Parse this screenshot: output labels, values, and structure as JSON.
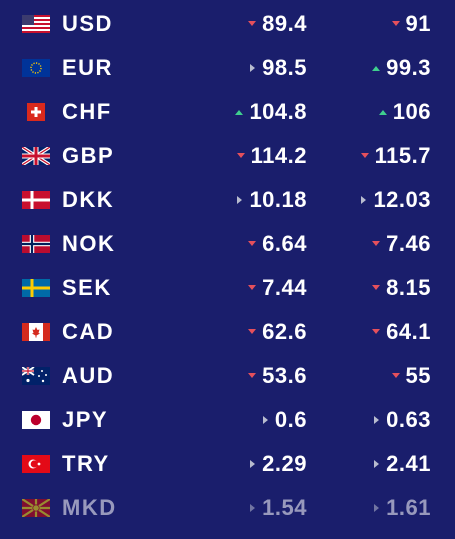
{
  "rows": [
    {
      "code": "USD",
      "buy": 89.4,
      "sell": 91,
      "trend": {
        "buy": "down",
        "sell": "down"
      }
    },
    {
      "code": "EUR",
      "buy": 98.5,
      "sell": 99.3,
      "trend": {
        "buy": "flat",
        "sell": "up"
      }
    },
    {
      "code": "CHF",
      "buy": 104.8,
      "sell": 106,
      "trend": {
        "buy": "up",
        "sell": "up"
      }
    },
    {
      "code": "GBP",
      "buy": 114.2,
      "sell": 115.7,
      "trend": {
        "buy": "down",
        "sell": "down"
      }
    },
    {
      "code": "DKK",
      "buy": 10.18,
      "sell": 12.03,
      "trend": {
        "buy": "flat",
        "sell": "flat"
      }
    },
    {
      "code": "NOK",
      "buy": 6.64,
      "sell": 7.46,
      "trend": {
        "buy": "down",
        "sell": "down"
      }
    },
    {
      "code": "SEK",
      "buy": 7.44,
      "sell": 8.15,
      "trend": {
        "buy": "down",
        "sell": "down"
      }
    },
    {
      "code": "CAD",
      "buy": 62.6,
      "sell": 64.1,
      "trend": {
        "buy": "down",
        "sell": "down"
      }
    },
    {
      "code": "AUD",
      "buy": 53.6,
      "sell": 55,
      "trend": {
        "buy": "down",
        "sell": "down"
      }
    },
    {
      "code": "JPY",
      "buy": 0.6,
      "sell": 0.63,
      "trend": {
        "buy": "flat",
        "sell": "flat"
      }
    },
    {
      "code": "TRY",
      "buy": 2.29,
      "sell": 2.41,
      "trend": {
        "buy": "flat",
        "sell": "flat"
      }
    },
    {
      "code": "MKD",
      "buy": 1.54,
      "sell": 1.61,
      "trend": {
        "buy": "flat",
        "sell": "flat"
      }
    }
  ]
}
